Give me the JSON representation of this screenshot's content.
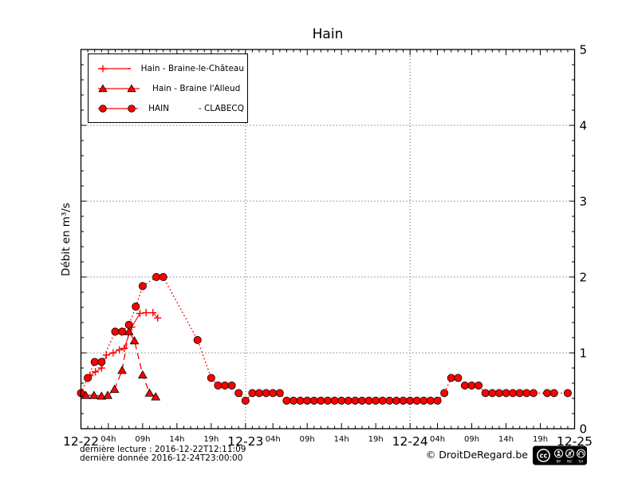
{
  "footer": {
    "line1": "dernière lecture : 2016-12-22T12:11:09",
    "line2": "dernière donnée  2016-12-24T23:00:00",
    "copyright": "© DroitDeRegard.be",
    "license_badge": {
      "cc": "cc",
      "by": "BY",
      "nc": "NC",
      "sa": "SA"
    }
  },
  "colors": {
    "series": "#ff0000",
    "marker_edge": "#000000",
    "grid": "#444444",
    "axis": "#000000",
    "background": "#ffffff"
  },
  "chart_data": {
    "type": "line",
    "title": "Hain",
    "xlabel": "",
    "ylabel": "Débit en m³/s",
    "grid": true,
    "legend_position": "upper-left",
    "x_axis": {
      "unit": "hours since 2016-12-22 00:00",
      "range_hours": [
        0,
        72
      ],
      "day_labels": [
        "12-22",
        "12-23",
        "12-24",
        "12-25"
      ],
      "hour_tick_labels": [
        "04h",
        "09h",
        "14h",
        "19h"
      ],
      "hour_tick_offsets": [
        4,
        9,
        14,
        19
      ],
      "grid_at_hours": [
        24,
        48
      ]
    },
    "y_axis": {
      "min": 0,
      "max": 5,
      "major_ticks": [
        0,
        1,
        2,
        3,
        4,
        5
      ],
      "tick_labels": [
        "0",
        "1",
        "2",
        "3",
        "4",
        "5"
      ],
      "minor_step": 0.2,
      "grid_at": [
        1,
        2,
        3,
        4
      ]
    },
    "series": [
      {
        "name": "Hain - Braine-le-Château",
        "marker": "plus",
        "line": "solid",
        "color": "#ff0000",
        "points": [
          [
            1.3,
            0.7
          ],
          [
            2.1,
            0.75
          ],
          [
            3.0,
            0.8
          ],
          [
            3.7,
            0.97
          ],
          [
            4.7,
            1.0
          ],
          [
            5.6,
            1.04
          ],
          [
            6.3,
            1.06
          ],
          [
            7.4,
            1.34
          ],
          [
            8.6,
            1.52
          ],
          [
            9.5,
            1.53
          ],
          [
            10.5,
            1.53
          ],
          [
            11.2,
            1.46
          ]
        ]
      },
      {
        "name": "Hain - Braine l'Alleud",
        "marker": "triangle",
        "line": "dashed",
        "color": "#ff0000",
        "points": [
          [
            0.7,
            0.44
          ],
          [
            1.9,
            0.44
          ],
          [
            3.0,
            0.43
          ],
          [
            3.9,
            0.44
          ],
          [
            4.9,
            0.52
          ],
          [
            6.0,
            0.77
          ],
          [
            7.0,
            1.28
          ],
          [
            7.8,
            1.16
          ],
          [
            9.0,
            0.71
          ],
          [
            10.0,
            0.47
          ],
          [
            10.9,
            0.42
          ]
        ]
      },
      {
        "name": "HAIN           - CLABECQ",
        "marker": "circle",
        "line": "dotted",
        "color": "#ff0000",
        "points": [
          [
            0,
            0.47
          ],
          [
            1,
            0.67
          ],
          [
            2,
            0.88
          ],
          [
            3,
            0.88
          ],
          [
            5,
            1.28
          ],
          [
            6,
            1.28
          ],
          [
            7,
            1.37
          ],
          [
            8,
            1.61
          ],
          [
            9,
            1.88
          ],
          [
            11,
            2.0
          ],
          [
            12,
            2.0
          ],
          [
            17,
            1.17
          ],
          [
            19,
            0.67
          ],
          [
            20,
            0.57
          ],
          [
            21,
            0.57
          ],
          [
            22,
            0.57
          ],
          [
            23,
            0.47
          ],
          [
            24,
            0.37
          ],
          [
            25,
            0.47
          ],
          [
            26,
            0.47
          ],
          [
            27,
            0.47
          ],
          [
            28,
            0.47
          ],
          [
            29,
            0.47
          ],
          [
            30,
            0.37
          ],
          [
            31,
            0.37
          ],
          [
            32,
            0.37
          ],
          [
            33,
            0.37
          ],
          [
            34,
            0.37
          ],
          [
            35,
            0.37
          ],
          [
            36,
            0.37
          ],
          [
            37,
            0.37
          ],
          [
            38,
            0.37
          ],
          [
            39,
            0.37
          ],
          [
            40,
            0.37
          ],
          [
            41,
            0.37
          ],
          [
            42,
            0.37
          ],
          [
            43,
            0.37
          ],
          [
            44,
            0.37
          ],
          [
            45,
            0.37
          ],
          [
            46,
            0.37
          ],
          [
            47,
            0.37
          ],
          [
            48,
            0.37
          ],
          [
            49,
            0.37
          ],
          [
            50,
            0.37
          ],
          [
            51,
            0.37
          ],
          [
            52,
            0.37
          ],
          [
            53,
            0.47
          ],
          [
            54,
            0.67
          ],
          [
            55,
            0.67
          ],
          [
            56,
            0.57
          ],
          [
            57,
            0.57
          ],
          [
            58,
            0.57
          ],
          [
            59,
            0.47
          ],
          [
            60,
            0.47
          ],
          [
            61,
            0.47
          ],
          [
            62,
            0.47
          ],
          [
            63,
            0.47
          ],
          [
            64,
            0.47
          ],
          [
            65,
            0.47
          ],
          [
            66,
            0.47
          ],
          [
            68,
            0.47
          ],
          [
            69,
            0.47
          ],
          [
            71,
            0.47
          ]
        ]
      }
    ]
  }
}
